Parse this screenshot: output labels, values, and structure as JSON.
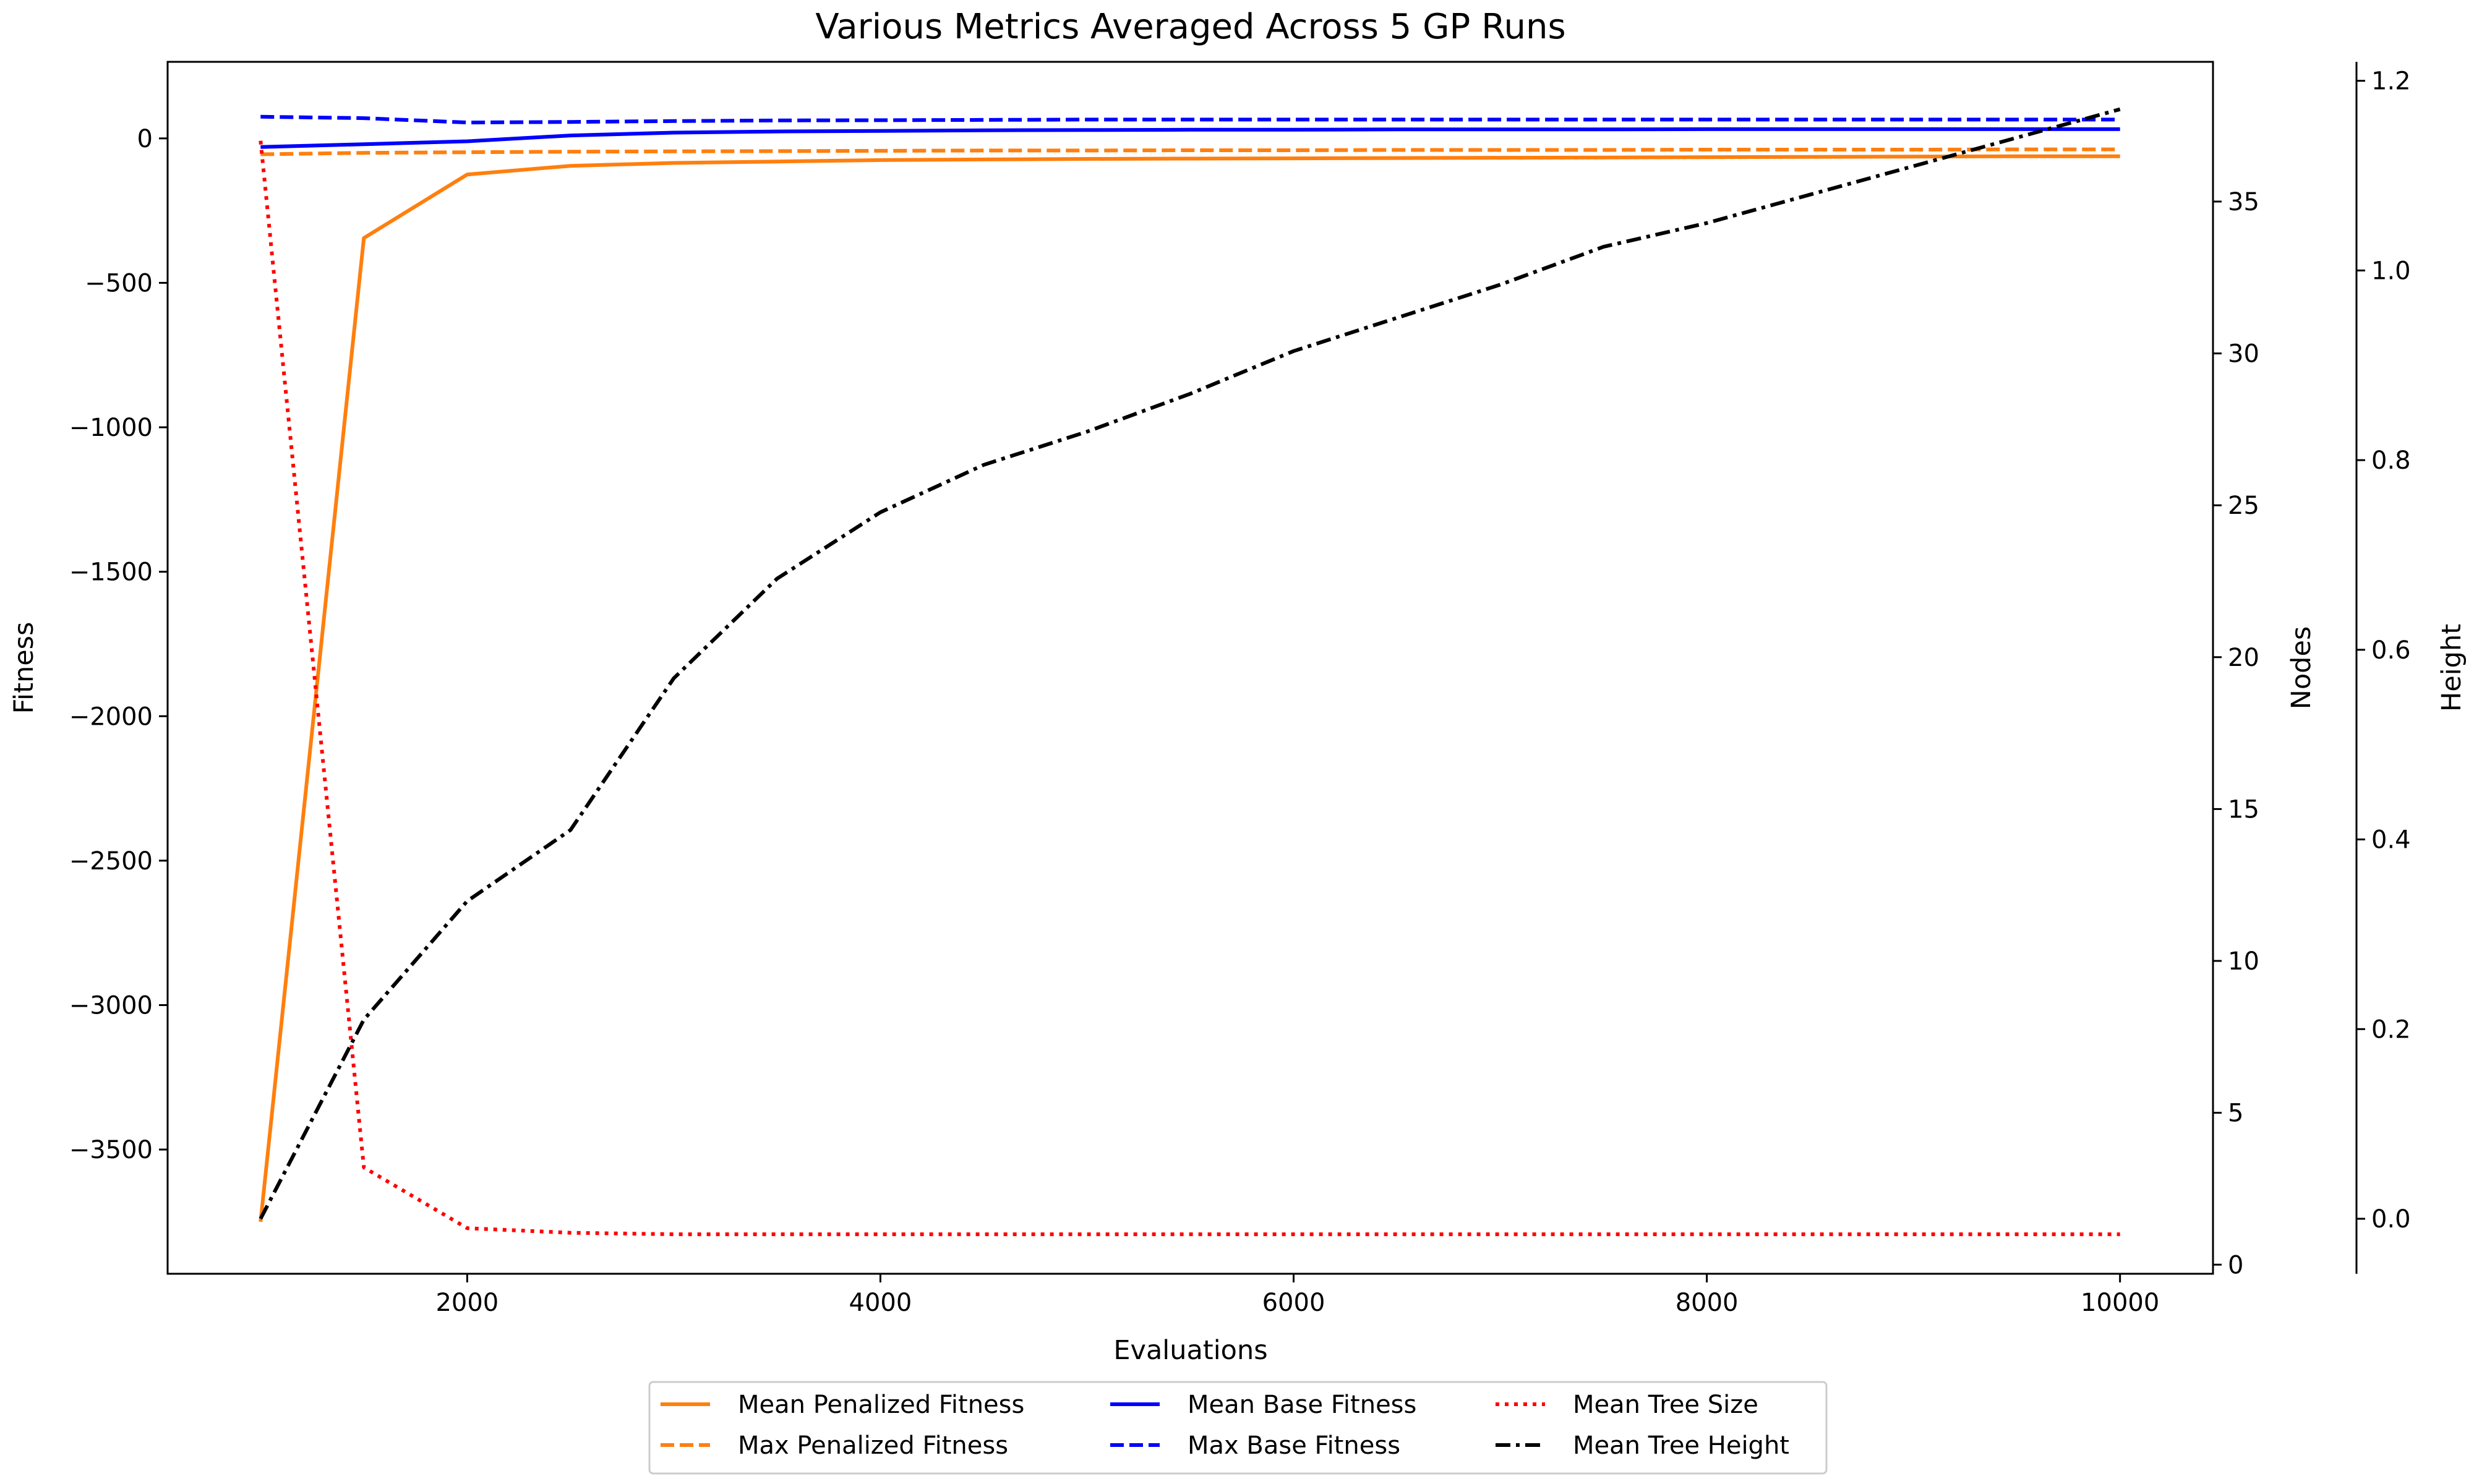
{
  "chart_data": {
    "type": "line",
    "title": "Various Metrics Averaged Across 5 GP Runs",
    "xlabel": "Evaluations",
    "x": [
      1000,
      1500,
      2000,
      2500,
      3000,
      3500,
      4000,
      4500,
      5000,
      5500,
      6000,
      6500,
      7000,
      7500,
      8000,
      8500,
      9000,
      9500,
      10000
    ],
    "xlim": [
      550,
      10450
    ],
    "x_ticks": [
      "2000",
      "4000",
      "6000",
      "8000",
      "10000"
    ],
    "axes": {
      "fitness": {
        "label": "Fitness",
        "position": "left",
        "ylim": [
          -3930,
          265
        ],
        "ticks": [
          "0",
          "−500",
          "−1000",
          "−1500",
          "−2000",
          "−2500",
          "−3000",
          "−3500"
        ]
      },
      "nodes": {
        "label": "Nodes",
        "position": "right",
        "ylim": [
          -0.3,
          39.6
        ],
        "ticks": [
          "0",
          "5",
          "10",
          "15",
          "20",
          "25",
          "30",
          "35"
        ]
      },
      "height": {
        "label": "Height",
        "position": "right-offset",
        "ylim": [
          -0.058,
          1.22
        ],
        "ticks": [
          "0.0",
          "0.2",
          "0.4",
          "0.6",
          "0.8",
          "1.0",
          "1.2"
        ]
      }
    },
    "series": [
      {
        "name": "Mean Penalized Fitness",
        "axis": "fitness",
        "color": "#ff7f0e",
        "style": "solid",
        "values": [
          -3750,
          -345,
          -125,
          -95,
          -85,
          -80,
          -75,
          -73,
          -71,
          -70,
          -69,
          -68,
          -67,
          -66,
          -65,
          -64,
          -63,
          -62,
          -62
        ]
      },
      {
        "name": "Max Penalized Fitness",
        "axis": "fitness",
        "color": "#ff7f0e",
        "style": "dashed",
        "values": [
          -55,
          -50,
          -48,
          -46,
          -45,
          -44,
          -43,
          -42,
          -42,
          -41,
          -41,
          -40,
          -40,
          -40,
          -39,
          -39,
          -39,
          -38,
          -38
        ]
      },
      {
        "name": "Mean Base Fitness",
        "axis": "fitness",
        "color": "#0000ff",
        "style": "solid",
        "values": [
          -30,
          -20,
          -10,
          10,
          20,
          24,
          26,
          28,
          29,
          30,
          30,
          31,
          31,
          31,
          32,
          32,
          32,
          32,
          32
        ]
      },
      {
        "name": "Max Base Fitness",
        "axis": "fitness",
        "color": "#0000ff",
        "style": "dashed",
        "values": [
          75,
          70,
          55,
          57,
          60,
          62,
          63,
          64,
          65,
          65,
          65,
          65,
          65,
          65,
          65,
          65,
          65,
          65,
          65
        ]
      },
      {
        "name": "Mean Tree Size",
        "axis": "nodes",
        "color": "#ff0000",
        "style": "dotted",
        "values": [
          37,
          3.2,
          1.2,
          1.05,
          1,
          1,
          1,
          1,
          1,
          1,
          1,
          1,
          1,
          1,
          1,
          1,
          1,
          1,
          1
        ]
      },
      {
        "name": "Mean Tree Height",
        "axis": "height",
        "color": "#000000",
        "style": "dashdot",
        "values": [
          0,
          0.21,
          0.335,
          0.41,
          0.57,
          0.675,
          0.745,
          0.795,
          0.83,
          0.87,
          0.915,
          0.95,
          0.985,
          1.025,
          1.05,
          1.08,
          1.11,
          1.14,
          1.17
        ]
      }
    ],
    "legend": {
      "placement": "bottom-center",
      "columns": 3
    },
    "grid": false
  }
}
